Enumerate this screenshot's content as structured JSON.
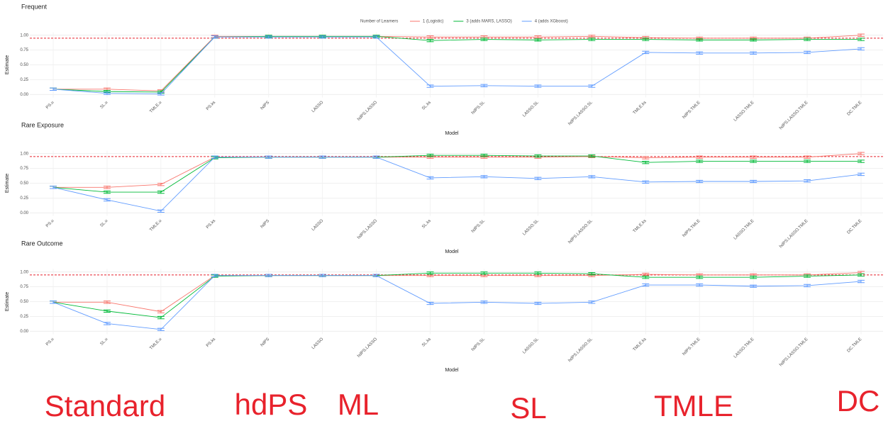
{
  "chart_data": [
    {
      "type": "line",
      "title": "Frequent",
      "legend_title": "Number of Learners",
      "xlabel": "Model",
      "ylabel": "Estimate",
      "categories": [
        "PS.u",
        "SL.u",
        "TMLE.u",
        "PS.ks",
        "hdPS",
        "LASSO",
        "hdPS.LASSO",
        "SL.ks",
        "hdPS.SL",
        "LASSO.SL",
        "hdPS.LASSO.SL",
        "TMLE.ks",
        "hdPS.TMLE",
        "LASSO.TMLE",
        "hdPS.LASSO.TMLE",
        "DC.TMLE"
      ],
      "series": [
        {
          "name": "1 (Logistic)",
          "color": "#f8766d",
          "error": 0.02,
          "values": [
            0.09,
            0.09,
            0.06,
            0.98,
            0.98,
            0.98,
            0.98,
            0.97,
            0.97,
            0.97,
            0.98,
            0.96,
            0.95,
            0.95,
            0.95,
            1.0
          ]
        },
        {
          "name": "3 (adds MARS, LASSO)",
          "color": "#00ba38",
          "error": 0.02,
          "values": [
            0.09,
            0.05,
            0.04,
            0.97,
            0.98,
            0.98,
            0.98,
            0.91,
            0.93,
            0.92,
            0.93,
            0.93,
            0.92,
            0.92,
            0.93,
            0.93
          ]
        },
        {
          "name": "4 (adds XGboost)",
          "color": "#619cff",
          "error": 0.02,
          "values": [
            0.09,
            0.02,
            0.01,
            0.97,
            0.97,
            0.97,
            0.97,
            0.14,
            0.15,
            0.14,
            0.14,
            0.71,
            0.7,
            0.7,
            0.71,
            0.77
          ]
        }
      ],
      "hline": 0.95,
      "ylim": [
        -0.05,
        1.05
      ],
      "yticks": [
        {
          "value": 0,
          "label": "0.00"
        },
        {
          "value": 0.25,
          "label": "0.25"
        },
        {
          "value": 0.5,
          "label": "0.50"
        },
        {
          "value": 0.75,
          "label": "0.75"
        },
        {
          "value": 1,
          "label": "1.00"
        }
      ],
      "grid": true
    },
    {
      "type": "line",
      "title": "Rare Exposure",
      "xlabel": "Model",
      "ylabel": "Estimate",
      "categories": [
        "PS.u",
        "SL.u",
        "TMLE.u",
        "PS.ks",
        "hdPS",
        "LASSO",
        "hdPS.LASSO",
        "SL.ks",
        "hdPS.SL",
        "LASSO.SL",
        "hdPS.LASSO.SL",
        "TMLE.ks",
        "hdPS.TMLE",
        "LASSO.TMLE",
        "hdPS.LASSO.TMLE",
        "DC.TMLE"
      ],
      "series": [
        {
          "name": "1 (Logistic)",
          "color": "#f8766d",
          "error": 0.02,
          "values": [
            0.43,
            0.43,
            0.48,
            0.94,
            0.94,
            0.94,
            0.94,
            0.94,
            0.94,
            0.94,
            0.95,
            0.93,
            0.94,
            0.94,
            0.94,
            1.0
          ]
        },
        {
          "name": "3 (adds MARS, LASSO)",
          "color": "#00ba38",
          "error": 0.02,
          "values": [
            0.43,
            0.35,
            0.35,
            0.93,
            0.94,
            0.94,
            0.94,
            0.97,
            0.97,
            0.96,
            0.96,
            0.85,
            0.87,
            0.87,
            0.87,
            0.87
          ]
        },
        {
          "name": "4 (adds XGboost)",
          "color": "#619cff",
          "error": 0.02,
          "values": [
            0.43,
            0.22,
            0.03,
            0.94,
            0.94,
            0.94,
            0.94,
            0.59,
            0.61,
            0.58,
            0.61,
            0.52,
            0.53,
            0.53,
            0.54,
            0.65
          ]
        }
      ],
      "hline": 0.95,
      "ylim": [
        -0.05,
        1.05
      ],
      "yticks": [
        {
          "value": 0,
          "label": "0.00"
        },
        {
          "value": 0.25,
          "label": "0.25"
        },
        {
          "value": 0.5,
          "label": "0.50"
        },
        {
          "value": 0.75,
          "label": "0.75"
        },
        {
          "value": 1,
          "label": "1.00"
        }
      ],
      "grid": true
    },
    {
      "type": "line",
      "title": "Rare Outcome",
      "xlabel": "Model",
      "ylabel": "Estimate",
      "categories": [
        "PS.u",
        "SL.u",
        "TMLE.u",
        "PS.ks",
        "hdPS",
        "LASSO",
        "hdPS.LASSO",
        "SL.ks",
        "hdPS.SL",
        "LASSO.SL",
        "hdPS.LASSO.SL",
        "TMLE.ks",
        "hdPS.TMLE",
        "LASSO.TMLE",
        "hdPS.LASSO.TMLE",
        "DC.TMLE"
      ],
      "series": [
        {
          "name": "1 (Logistic)",
          "color": "#f8766d",
          "error": 0.02,
          "values": [
            0.49,
            0.49,
            0.33,
            0.94,
            0.94,
            0.94,
            0.94,
            0.94,
            0.94,
            0.94,
            0.94,
            0.96,
            0.95,
            0.95,
            0.95,
            0.99
          ]
        },
        {
          "name": "3 (adds MARS, LASSO)",
          "color": "#00ba38",
          "error": 0.02,
          "values": [
            0.49,
            0.34,
            0.23,
            0.93,
            0.94,
            0.94,
            0.94,
            0.98,
            0.98,
            0.98,
            0.97,
            0.91,
            0.91,
            0.91,
            0.93,
            0.95
          ]
        },
        {
          "name": "4 (adds XGboost)",
          "color": "#619cff",
          "error": 0.02,
          "values": [
            0.49,
            0.13,
            0.03,
            0.94,
            0.94,
            0.94,
            0.94,
            0.47,
            0.49,
            0.47,
            0.49,
            0.78,
            0.78,
            0.76,
            0.77,
            0.84
          ]
        }
      ],
      "hline": 0.95,
      "ylim": [
        -0.05,
        1.05
      ],
      "yticks": [
        {
          "value": 0,
          "label": "0.00"
        },
        {
          "value": 0.25,
          "label": "0.25"
        },
        {
          "value": 0.5,
          "label": "0.50"
        },
        {
          "value": 0.75,
          "label": "0.75"
        },
        {
          "value": 1,
          "label": "1.00"
        }
      ],
      "grid": true
    }
  ],
  "group_labels": [
    "Standard",
    "hdPS",
    "ML",
    "SL",
    "TMLE",
    "DC"
  ]
}
